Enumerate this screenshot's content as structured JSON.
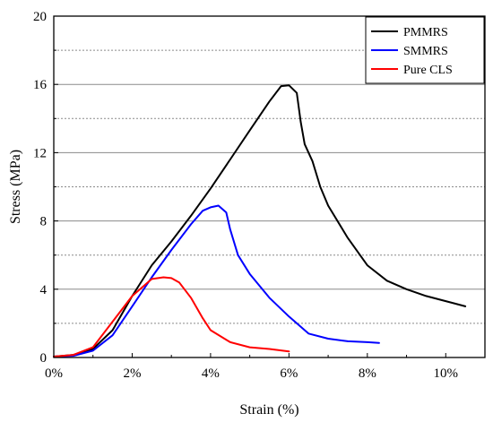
{
  "chart_data": {
    "type": "line",
    "title": "",
    "xlabel": "Strain (%)",
    "ylabel": "Stress (MPa)",
    "xlim": [
      0,
      11
    ],
    "ylim": [
      0,
      20
    ],
    "x_ticks": [
      0,
      2,
      4,
      6,
      8,
      10
    ],
    "x_tick_labels": [
      "0%",
      "2%",
      "4%",
      "6%",
      "8%",
      "10%"
    ],
    "y_ticks": [
      0,
      4,
      8,
      12,
      16,
      20
    ],
    "y_tick_labels": [
      "0",
      "4",
      "8",
      "12",
      "16",
      "20"
    ],
    "gridlines": [
      2,
      4,
      6,
      8,
      10,
      12,
      14,
      16,
      18
    ],
    "grid": "horizontal",
    "legend_position": "top-right",
    "series": [
      {
        "name": "PMMRS",
        "color": "#000000",
        "points": [
          [
            0,
            0.05
          ],
          [
            0.5,
            0.15
          ],
          [
            1.0,
            0.5
          ],
          [
            1.5,
            1.6
          ],
          [
            2.0,
            3.6
          ],
          [
            2.5,
            5.4
          ],
          [
            3.0,
            6.8
          ],
          [
            3.5,
            8.3
          ],
          [
            4.0,
            9.9
          ],
          [
            4.5,
            11.6
          ],
          [
            5.0,
            13.3
          ],
          [
            5.5,
            15.0
          ],
          [
            5.8,
            15.9
          ],
          [
            6.0,
            15.95
          ],
          [
            6.2,
            15.5
          ],
          [
            6.3,
            13.8
          ],
          [
            6.4,
            12.5
          ],
          [
            6.6,
            11.5
          ],
          [
            6.8,
            10.0
          ],
          [
            7.0,
            8.9
          ],
          [
            7.5,
            7.0
          ],
          [
            8.0,
            5.4
          ],
          [
            8.5,
            4.5
          ],
          [
            9.0,
            4.0
          ],
          [
            9.5,
            3.6
          ],
          [
            10.0,
            3.3
          ],
          [
            10.5,
            3.0
          ]
        ]
      },
      {
        "name": "SMMRS",
        "color": "#0000ff",
        "points": [
          [
            0,
            0.05
          ],
          [
            0.5,
            0.1
          ],
          [
            1.0,
            0.4
          ],
          [
            1.5,
            1.3
          ],
          [
            2.0,
            3.0
          ],
          [
            2.5,
            4.7
          ],
          [
            3.0,
            6.3
          ],
          [
            3.5,
            7.8
          ],
          [
            3.8,
            8.6
          ],
          [
            4.0,
            8.8
          ],
          [
            4.2,
            8.9
          ],
          [
            4.4,
            8.5
          ],
          [
            4.5,
            7.5
          ],
          [
            4.7,
            6.0
          ],
          [
            5.0,
            4.9
          ],
          [
            5.5,
            3.5
          ],
          [
            6.0,
            2.4
          ],
          [
            6.5,
            1.4
          ],
          [
            7.0,
            1.1
          ],
          [
            7.5,
            0.95
          ],
          [
            8.0,
            0.9
          ],
          [
            8.3,
            0.85
          ]
        ]
      },
      {
        "name": "Pure CLS",
        "color": "#ff0000",
        "points": [
          [
            0,
            0.05
          ],
          [
            0.5,
            0.15
          ],
          [
            1.0,
            0.6
          ],
          [
            1.5,
            2.1
          ],
          [
            2.0,
            3.6
          ],
          [
            2.5,
            4.6
          ],
          [
            2.8,
            4.7
          ],
          [
            3.0,
            4.65
          ],
          [
            3.2,
            4.4
          ],
          [
            3.5,
            3.5
          ],
          [
            3.8,
            2.3
          ],
          [
            4.0,
            1.6
          ],
          [
            4.5,
            0.9
          ],
          [
            5.0,
            0.6
          ],
          [
            5.5,
            0.5
          ],
          [
            6.0,
            0.35
          ]
        ]
      }
    ]
  }
}
